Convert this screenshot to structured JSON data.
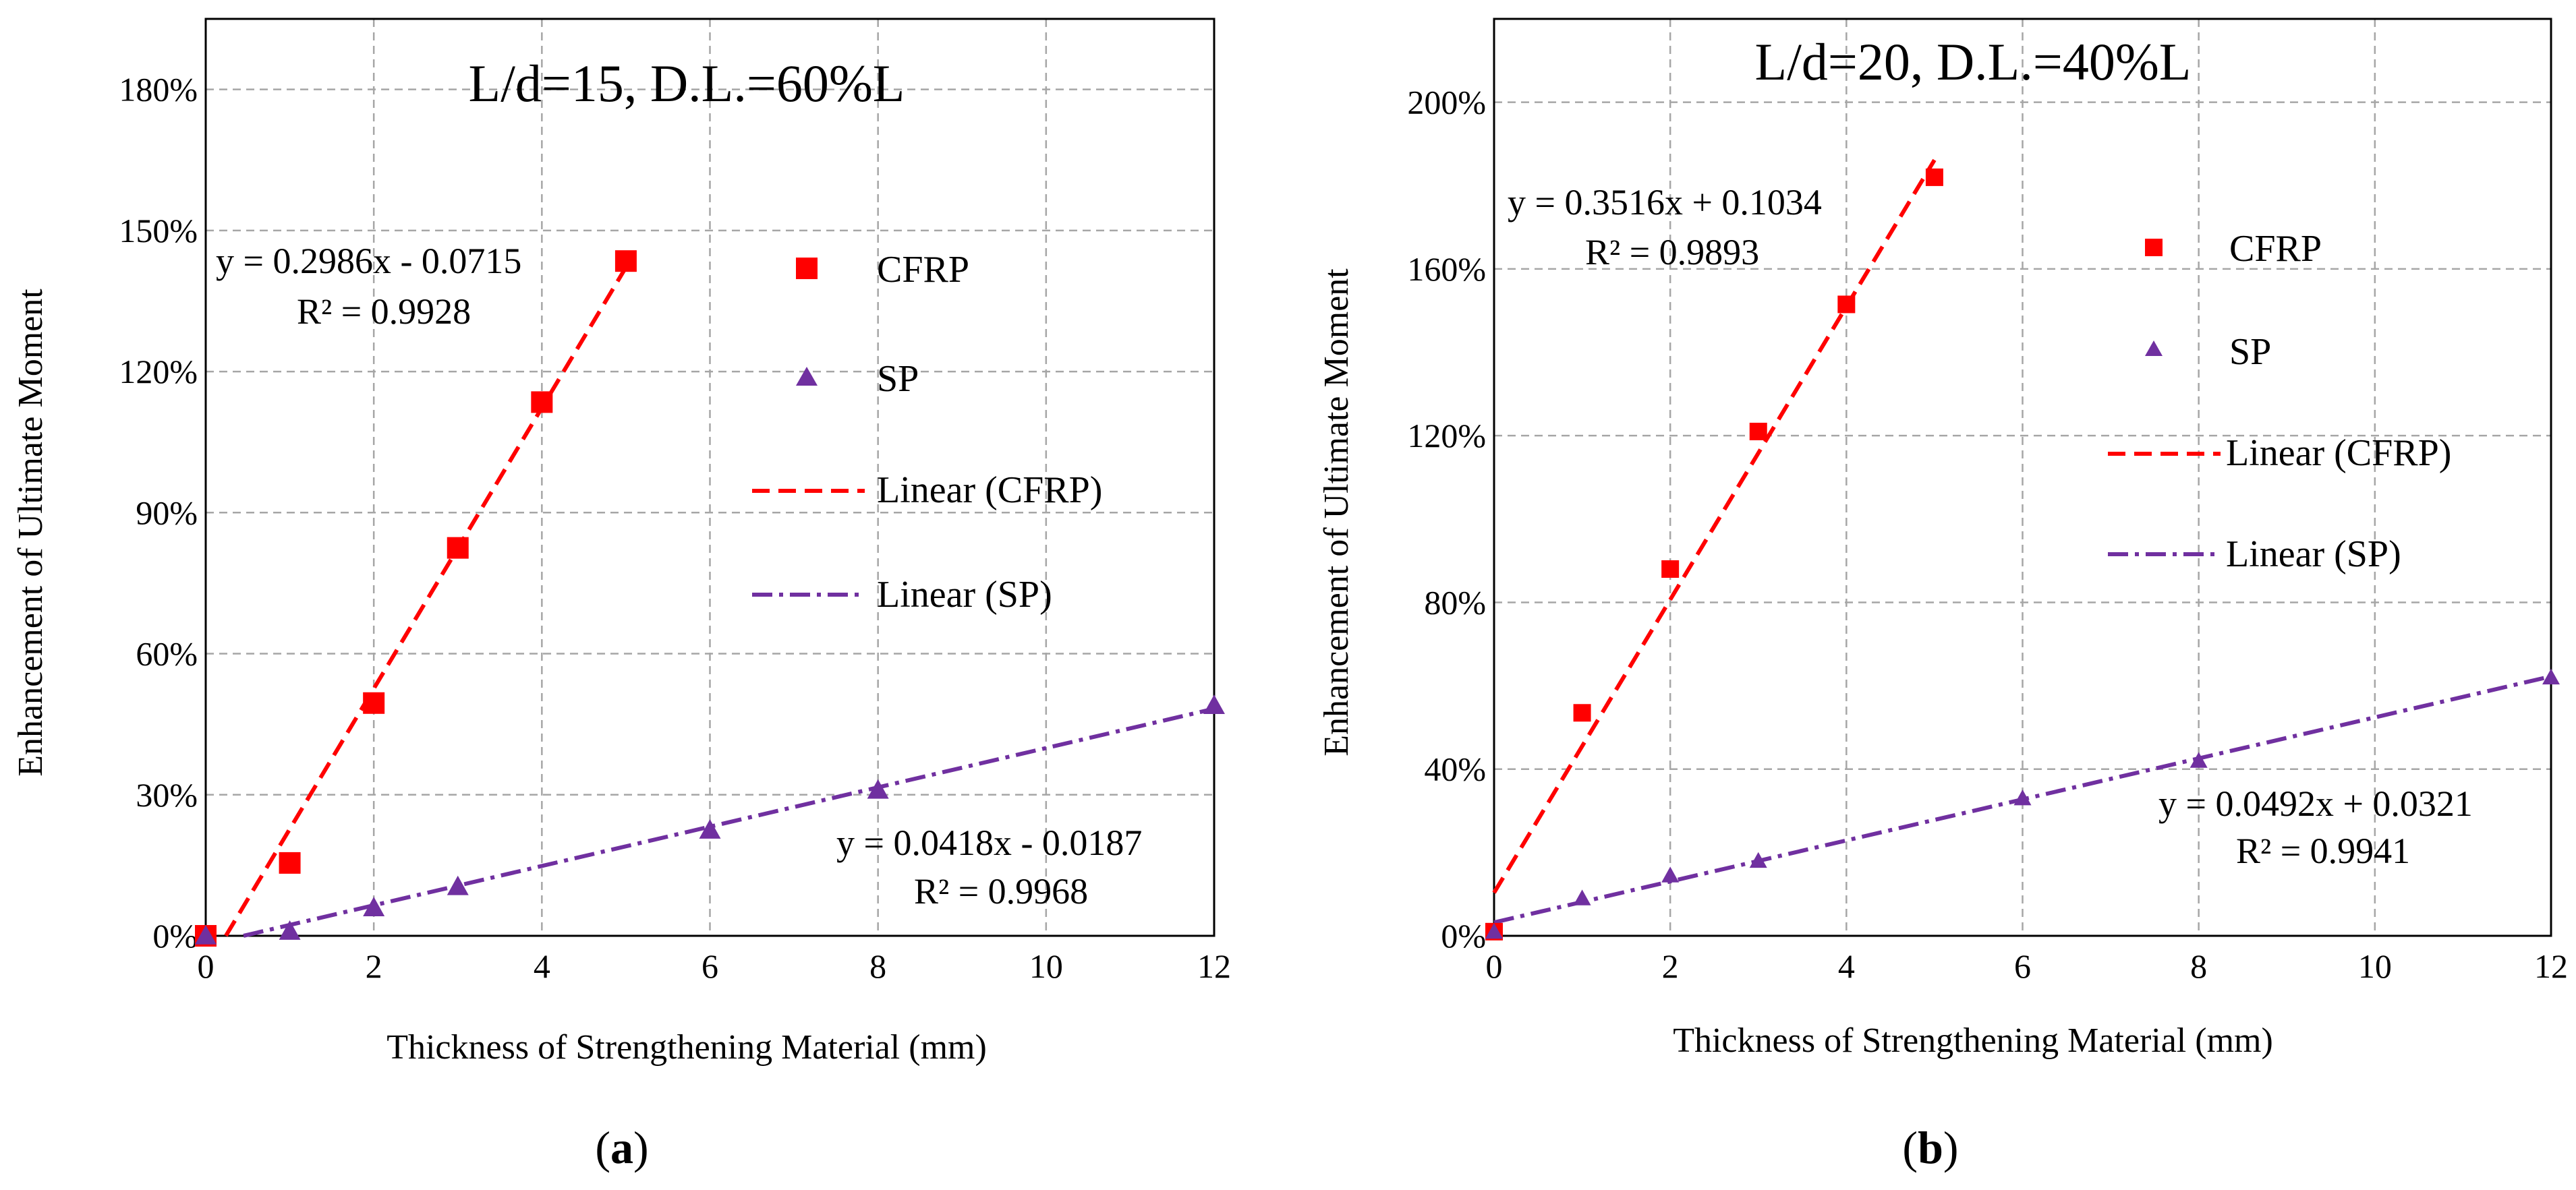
{
  "colors": {
    "cfrp": "#ff0000",
    "sp": "#7030a0",
    "grid": "#a6a6a6",
    "axis": "#000000"
  },
  "chart_data": [
    {
      "type": "scatter",
      "panel": "a",
      "caption_open": "(",
      "caption_letter": "a",
      "caption_close": ")",
      "title": "L/d=15, D.L.=60%L",
      "xlabel": "Thickness of Strengthening Material (mm)",
      "ylabel": "Enhancement of Ultimate Moment",
      "xlim": [
        0,
        12
      ],
      "ylim": [
        0,
        1.95
      ],
      "xticks": [
        0,
        2,
        4,
        6,
        8,
        10,
        12
      ],
      "yticks": [
        0,
        0.3,
        0.6,
        0.9,
        1.2,
        1.5,
        1.8
      ],
      "ytick_labels": [
        "0%",
        "30%",
        "60%",
        "90%",
        "120%",
        "150%",
        "180%"
      ],
      "grid": true,
      "series": [
        {
          "name": "CFRP",
          "marker": "square",
          "x": [
            0,
            1,
            2,
            3,
            4,
            5
          ],
          "y": [
            0.0,
            0.155,
            0.495,
            0.825,
            1.135,
            1.435
          ]
        },
        {
          "name": "SP",
          "marker": "triangle",
          "x": [
            0,
            1,
            2,
            3,
            6,
            8,
            12
          ],
          "y": [
            0.0,
            0.01,
            0.06,
            0.105,
            0.225,
            0.31,
            0.49
          ]
        }
      ],
      "trendlines": [
        {
          "name": "Linear (CFRP)",
          "style": "dashed",
          "slope": 0.2986,
          "intercept": -0.0715,
          "x_range": [
            0.24,
            5
          ],
          "equation": "y = 0.2986x - 0.0715",
          "r2": "R² = 0.9928"
        },
        {
          "name": "Linear (SP)",
          "style": "dashdot",
          "slope": 0.0418,
          "intercept": -0.0187,
          "x_range": [
            0.45,
            12
          ],
          "equation": "y = 0.0418x - 0.0187",
          "r2": "R² = 0.9968"
        }
      ],
      "legend": [
        "CFRP",
        "SP",
        "Linear (CFRP)",
        "Linear (SP)"
      ],
      "legend_position": "top-right"
    },
    {
      "type": "scatter",
      "panel": "b",
      "caption_open": "(",
      "caption_letter": "b",
      "caption_close": ")",
      "title": "L/d=20, D.L.=40%L",
      "xlabel": "Thickness of Strengthening Material (mm)",
      "ylabel": "Enhancement of Ultimate Moment",
      "xlim": [
        0,
        12
      ],
      "ylim": [
        0,
        2.2
      ],
      "xticks": [
        0,
        2,
        4,
        6,
        8,
        10,
        12
      ],
      "yticks": [
        0,
        0.4,
        0.8,
        1.2,
        1.6,
        2.0
      ],
      "ytick_labels": [
        "0%",
        "40%",
        "80%",
        "120%",
        "160%",
        "200%"
      ],
      "grid": true,
      "series": [
        {
          "name": "CFRP",
          "marker": "square",
          "x": [
            0,
            1,
            2,
            3,
            4,
            5
          ],
          "y": [
            0.01,
            0.535,
            0.88,
            1.21,
            1.515,
            1.82
          ]
        },
        {
          "name": "SP",
          "marker": "triangle",
          "x": [
            0,
            1,
            2,
            3,
            6,
            8,
            12
          ],
          "y": [
            0.01,
            0.09,
            0.145,
            0.18,
            0.33,
            0.42,
            0.62
          ]
        }
      ],
      "trendlines": [
        {
          "name": "Linear (CFRP)",
          "style": "dashed",
          "slope": 0.3516,
          "intercept": 0.1034,
          "x_range": [
            0,
            5
          ],
          "equation": "y = 0.3516x + 0.1034",
          "r2": "R² = 0.9893"
        },
        {
          "name": "Linear (SP)",
          "style": "dashdot",
          "slope": 0.0492,
          "intercept": 0.0321,
          "x_range": [
            0,
            12
          ],
          "equation": "y = 0.0492x + 0.0321",
          "r2": "R² = 0.9941"
        }
      ],
      "legend": [
        "CFRP",
        "SP",
        "Linear (CFRP)",
        "Linear (SP)"
      ],
      "legend_position": "top-right"
    }
  ]
}
